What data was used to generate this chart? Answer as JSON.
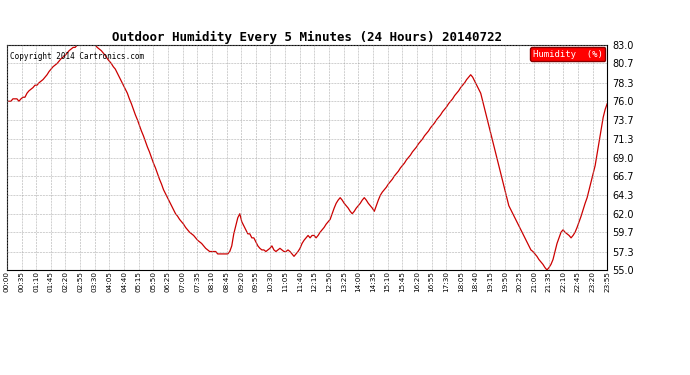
{
  "title": "Outdoor Humidity Every 5 Minutes (24 Hours) 20140722",
  "copyright_text": "Copyright 2014 Cartronics.com",
  "legend_label": "Humidity  (%)",
  "legend_bg": "#FF0000",
  "legend_fg": "#FFFFFF",
  "line_color": "#CC0000",
  "bg_color": "#FFFFFF",
  "grid_color": "#999999",
  "ylim": [
    55.0,
    83.0
  ],
  "yticks": [
    55.0,
    57.3,
    59.7,
    62.0,
    64.3,
    66.7,
    69.0,
    71.3,
    73.7,
    76.0,
    78.3,
    80.7,
    83.0
  ],
  "humidity_values": [
    76.0,
    76.0,
    76.0,
    76.3,
    76.3,
    76.3,
    76.0,
    76.3,
    76.5,
    76.5,
    77.0,
    77.3,
    77.5,
    77.7,
    78.0,
    78.0,
    78.3,
    78.5,
    78.7,
    79.0,
    79.3,
    79.7,
    80.0,
    80.3,
    80.5,
    80.7,
    81.0,
    81.3,
    81.5,
    81.7,
    82.0,
    82.3,
    82.5,
    82.7,
    82.7,
    83.0,
    83.0,
    83.0,
    83.0,
    83.0,
    83.0,
    83.0,
    83.0,
    83.0,
    83.0,
    82.7,
    82.5,
    82.3,
    82.0,
    81.7,
    81.3,
    81.0,
    80.7,
    80.3,
    80.0,
    79.5,
    79.0,
    78.5,
    78.0,
    77.5,
    77.0,
    76.3,
    75.7,
    75.0,
    74.3,
    73.7,
    73.0,
    72.3,
    71.7,
    71.0,
    70.3,
    69.7,
    69.0,
    68.3,
    67.7,
    67.0,
    66.3,
    65.7,
    65.0,
    64.5,
    64.0,
    63.5,
    63.0,
    62.5,
    62.0,
    61.7,
    61.3,
    61.0,
    60.7,
    60.3,
    60.0,
    59.7,
    59.5,
    59.3,
    59.0,
    58.7,
    58.5,
    58.3,
    58.0,
    57.7,
    57.5,
    57.3,
    57.3,
    57.3,
    57.3,
    57.0,
    57.0,
    57.0,
    57.0,
    57.0,
    57.0,
    57.3,
    58.0,
    59.5,
    60.5,
    61.5,
    62.0,
    61.0,
    60.5,
    60.0,
    59.5,
    59.5,
    59.0,
    59.0,
    58.5,
    58.0,
    57.7,
    57.5,
    57.5,
    57.3,
    57.5,
    57.7,
    58.0,
    57.5,
    57.3,
    57.5,
    57.7,
    57.5,
    57.3,
    57.3,
    57.5,
    57.3,
    57.0,
    56.7,
    57.0,
    57.3,
    57.7,
    58.3,
    58.7,
    59.0,
    59.3,
    59.0,
    59.3,
    59.3,
    59.0,
    59.3,
    59.7,
    60.0,
    60.3,
    60.7,
    61.0,
    61.3,
    62.0,
    62.7,
    63.3,
    63.7,
    64.0,
    63.7,
    63.3,
    63.0,
    62.7,
    62.3,
    62.0,
    62.3,
    62.7,
    63.0,
    63.3,
    63.7,
    64.0,
    63.7,
    63.3,
    63.0,
    62.7,
    62.3,
    63.0,
    63.7,
    64.3,
    64.7,
    65.0,
    65.3,
    65.7,
    66.0,
    66.3,
    66.7,
    67.0,
    67.3,
    67.7,
    68.0,
    68.3,
    68.7,
    69.0,
    69.3,
    69.7,
    70.0,
    70.3,
    70.7,
    71.0,
    71.3,
    71.7,
    72.0,
    72.3,
    72.7,
    73.0,
    73.3,
    73.7,
    74.0,
    74.3,
    74.7,
    75.0,
    75.3,
    75.7,
    76.0,
    76.3,
    76.7,
    77.0,
    77.3,
    77.7,
    78.0,
    78.3,
    78.7,
    79.0,
    79.3,
    79.0,
    78.5,
    78.0,
    77.5,
    77.0,
    76.0,
    75.0,
    74.0,
    73.0,
    72.0,
    71.0,
    70.0,
    69.0,
    68.0,
    67.0,
    66.0,
    65.0,
    64.0,
    63.0,
    62.5,
    62.0,
    61.5,
    61.0,
    60.5,
    60.0,
    59.5,
    59.0,
    58.5,
    58.0,
    57.5,
    57.3,
    57.0,
    56.7,
    56.3,
    56.0,
    55.7,
    55.3,
    55.0,
    55.3,
    55.7,
    56.3,
    57.3,
    58.3,
    59.0,
    59.7,
    60.0,
    59.7,
    59.5,
    59.3,
    59.0,
    59.3,
    59.7,
    60.3,
    61.0,
    61.7,
    62.5,
    63.3,
    64.0,
    65.0,
    66.0,
    67.0,
    68.0,
    69.5,
    71.0,
    72.5,
    74.0,
    75.0,
    75.7
  ],
  "xtick_labels": [
    "00:00",
    "00:35",
    "01:10",
    "01:45",
    "02:20",
    "02:55",
    "03:30",
    "04:05",
    "04:40",
    "05:15",
    "05:50",
    "06:25",
    "07:00",
    "07:35",
    "08:10",
    "08:45",
    "09:20",
    "09:55",
    "10:30",
    "11:05",
    "11:40",
    "12:15",
    "12:50",
    "13:25",
    "14:00",
    "14:35",
    "15:10",
    "15:45",
    "16:20",
    "16:55",
    "17:30",
    "18:05",
    "18:40",
    "19:15",
    "19:50",
    "20:25",
    "21:00",
    "21:35",
    "22:10",
    "22:45",
    "23:20",
    "23:55"
  ],
  "figsize": [
    6.9,
    3.75
  ],
  "dpi": 100
}
